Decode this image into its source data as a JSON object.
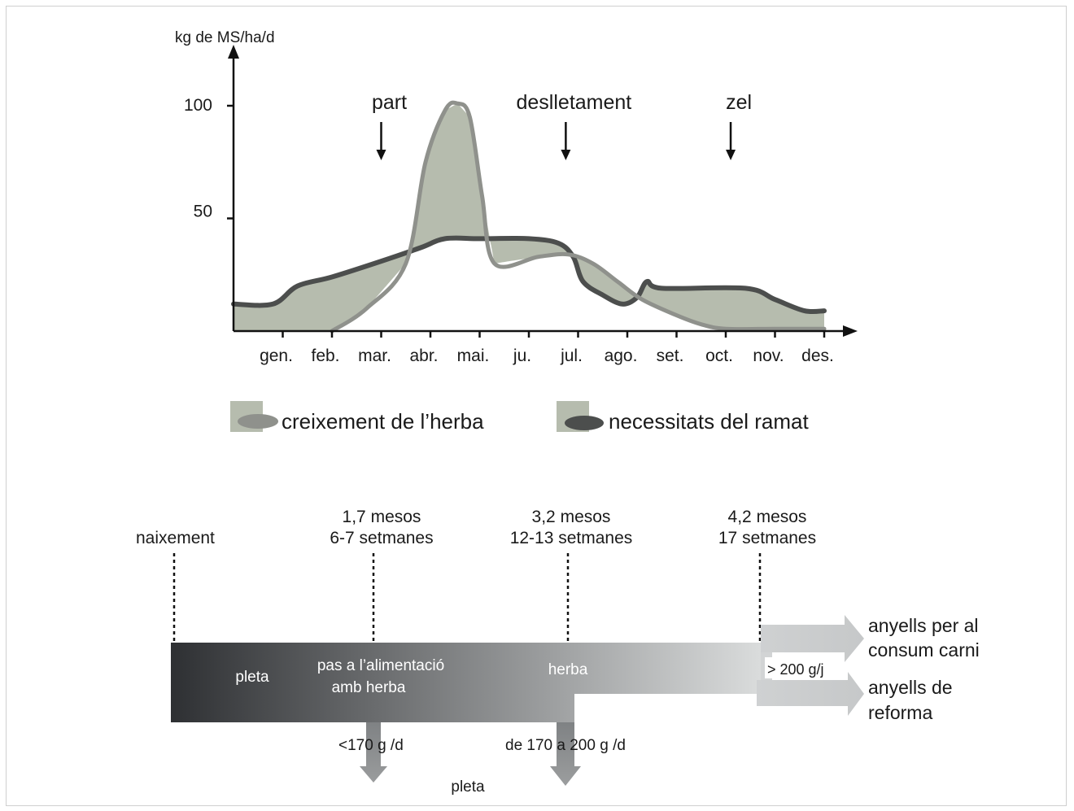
{
  "chart_data": {
    "type": "area",
    "ylabel": "kg de MS/ha/d",
    "yticks": [
      50,
      100
    ],
    "ylim": [
      0,
      120
    ],
    "categories": [
      "gen.",
      "feb.",
      "mar.",
      "abr.",
      "mai.",
      "ju.",
      "jul.",
      "ago.",
      "set.",
      "oct.",
      "nov.",
      "des."
    ],
    "events": [
      {
        "label": "part",
        "month": 3
      },
      {
        "label": "deslletament",
        "month": 6.75
      },
      {
        "label": "zel",
        "month": 10.1
      }
    ],
    "series": [
      {
        "name": "creixement de l’herba",
        "color": "#8f918c",
        "points": [
          [
            2,
            0
          ],
          [
            2.7,
            10
          ],
          [
            3.5,
            30
          ],
          [
            3.9,
            75
          ],
          [
            4.3,
            98
          ],
          [
            4.55,
            101
          ],
          [
            4.8,
            95
          ],
          [
            5.05,
            60
          ],
          [
            5.3,
            30
          ],
          [
            6.2,
            33
          ],
          [
            6.8,
            34
          ],
          [
            7.3,
            30
          ],
          [
            7.8,
            22
          ],
          [
            8.3,
            14
          ],
          [
            9,
            7
          ],
          [
            9.5,
            3
          ],
          [
            10,
            1
          ],
          [
            11,
            1
          ],
          [
            12,
            1
          ]
        ]
      },
      {
        "name": "necessitats del ramat",
        "color": "#4c4e4d",
        "points": [
          [
            0,
            12
          ],
          [
            0.8,
            12
          ],
          [
            1.3,
            20
          ],
          [
            2,
            24
          ],
          [
            3,
            31
          ],
          [
            3.8,
            37
          ],
          [
            4.3,
            41
          ],
          [
            5,
            41
          ],
          [
            6,
            41
          ],
          [
            6.6,
            39
          ],
          [
            6.9,
            33
          ],
          [
            7.1,
            22
          ],
          [
            7.5,
            16
          ],
          [
            7.9,
            12
          ],
          [
            8.2,
            15
          ],
          [
            8.4,
            22
          ],
          [
            8.7,
            19
          ],
          [
            10.4,
            19
          ],
          [
            11,
            14
          ],
          [
            11.6,
            9
          ],
          [
            12,
            9
          ]
        ]
      }
    ],
    "fill": "#b6bcae",
    "legend": {
      "placement": "bottom"
    }
  },
  "timeline": {
    "markers": [
      {
        "line1": "",
        "line2": "naixement"
      },
      {
        "line1": "1,7 mesos",
        "line2": "6-7 setmanes"
      },
      {
        "line1": "3,2 mesos",
        "line2": "12-13 setmanes"
      },
      {
        "line1": "4,2 mesos",
        "line2": "17 setmanes"
      }
    ],
    "stages": [
      "pleta",
      "pas a l’alimentació",
      "amb herba",
      "herba"
    ],
    "rate_top": "> 200 g/j",
    "exit_left": "<170  g /d",
    "exit_middle": "de 170 a 200  g /d",
    "exit_bottom": "pleta",
    "outcome_top_1": "anyells per al",
    "outcome_top_2": "consum carni",
    "outcome_bottom_1": "anyells de",
    "outcome_bottom_2": "reforma",
    "bar_colors": {
      "start": "#2e3033",
      "end": "#dadcdc"
    }
  }
}
